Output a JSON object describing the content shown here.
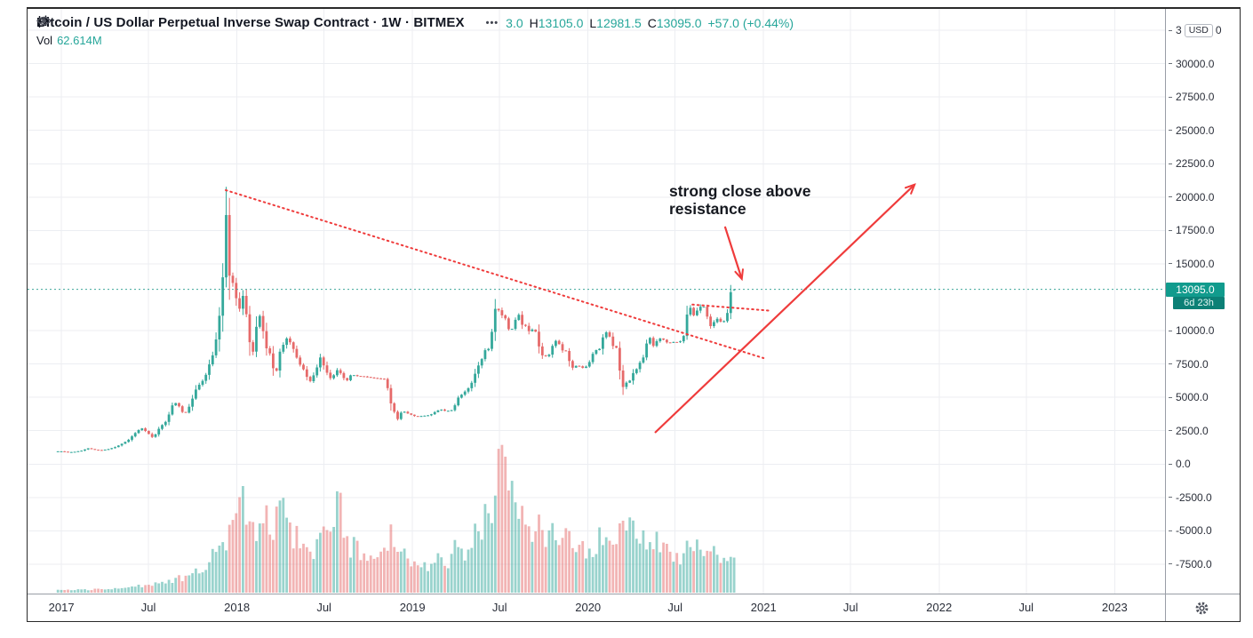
{
  "header": {
    "title": "Bitcoin / US Dollar Perpetual Inverse Swap Contract · 1W · BITMEX",
    "more_label": "•••",
    "ohlc": {
      "o_visible": "3.0",
      "h_key": "H",
      "h_val": "13105.0",
      "l_key": "L",
      "l_val": "12981.5",
      "c_key": "C",
      "c_val": "13095.0",
      "change": "+57.0 (+0.44%)"
    },
    "vol_key": "Vol",
    "vol_val": "62.614M"
  },
  "annotation": {
    "line1": "strong close above",
    "line2": "resistance"
  },
  "price_axis": {
    "top_tick": {
      "value": 32500,
      "prefix": "3",
      "badge": "USD",
      "suffix": "0"
    },
    "ticks": [
      "30000.0",
      "27500.0",
      "25000.0",
      "22500.0",
      "20000.0",
      "17500.0",
      "15000.0",
      "10000.0",
      "7500.0",
      "5000.0",
      "2500.0",
      "0.0",
      "-2500.0",
      "-5000.0",
      "-7500.0"
    ],
    "last_price_label": "13095.0",
    "countdown": "6d 23h"
  },
  "time_axis": {
    "ticks": [
      {
        "label": "2017",
        "t": 2017.0
      },
      {
        "label": "Jul",
        "t": 2017.496
      },
      {
        "label": "2018",
        "t": 2018.0
      },
      {
        "label": "Jul",
        "t": 2018.496
      },
      {
        "label": "2019",
        "t": 2019.0
      },
      {
        "label": "Jul",
        "t": 2019.496
      },
      {
        "label": "2020",
        "t": 2020.0
      },
      {
        "label": "Jul",
        "t": 2020.496
      },
      {
        "label": "2021",
        "t": 2021.0
      },
      {
        "label": "Jul",
        "t": 2021.496
      },
      {
        "label": "2022",
        "t": 2022.0
      },
      {
        "label": "Jul",
        "t": 2022.496
      },
      {
        "label": "2023",
        "t": 2023.0
      }
    ]
  },
  "colors": {
    "up": "#34a89b",
    "down": "#e66a6a",
    "grid": "#ecified",
    "gridline": "#eceef2",
    "priceline": "#2a9d90",
    "drawing": "#ef3b3b",
    "axis_text": "#2a2e39",
    "accent_text": "#26a69a"
  },
  "chart_data": {
    "type": "candlestick",
    "title": "Bitcoin / US Dollar Perpetual Inverse Swap Contract",
    "interval": "1W",
    "exchange": "BITMEX",
    "last": {
      "h": 13105.0,
      "l": 12981.5,
      "c": 13095.0,
      "change": 57.0,
      "change_pct": 0.44,
      "volume": "62.614M",
      "bar_time_left": "6d 23h"
    },
    "xlim": [
      2016.807,
      2023.287
    ],
    "ylim": [
      -9700,
      34100
    ],
    "weeks_per_year": 52.18,
    "candle_range": [
      2016.98,
      2020.84
    ],
    "price_line": 13095.0,
    "last_candle": {
      "o": 13038.0,
      "h": 13105.0,
      "l": 12981.5,
      "c": 13095.0
    },
    "close_anchors": [
      [
        2017.0,
        960
      ],
      [
        2017.04,
        890
      ],
      [
        2017.08,
        925
      ],
      [
        2017.12,
        1020
      ],
      [
        2017.15,
        1190
      ],
      [
        2017.19,
        1075
      ],
      [
        2017.23,
        1040
      ],
      [
        2017.27,
        1130
      ],
      [
        2017.31,
        1290
      ],
      [
        2017.35,
        1560
      ],
      [
        2017.38,
        1790
      ],
      [
        2017.42,
        2320
      ],
      [
        2017.44,
        2550
      ],
      [
        2017.46,
        2680
      ],
      [
        2017.48,
        2460
      ],
      [
        2017.52,
        1990
      ],
      [
        2017.54,
        2280
      ],
      [
        2017.56,
        2760
      ],
      [
        2017.6,
        3240
      ],
      [
        2017.63,
        4380
      ],
      [
        2017.65,
        4580
      ],
      [
        2017.67,
        4330
      ],
      [
        2017.7,
        3660
      ],
      [
        2017.73,
        4360
      ],
      [
        2017.75,
        5020
      ],
      [
        2017.77,
        5740
      ],
      [
        2017.8,
        6150
      ],
      [
        2017.82,
        6550
      ],
      [
        2017.84,
        7390
      ],
      [
        2017.86,
        8050
      ],
      [
        2017.88,
        9270
      ],
      [
        2017.9,
        11120
      ],
      [
        2017.92,
        14130
      ],
      [
        2017.94,
        19100
      ],
      [
        2017.955,
        14150
      ],
      [
        2017.97,
        13900
      ],
      [
        2017.99,
        12900
      ],
      [
        2018.01,
        11250
      ],
      [
        2018.03,
        12850
      ],
      [
        2018.05,
        11600
      ],
      [
        2018.07,
        9250
      ],
      [
        2018.09,
        8270
      ],
      [
        2018.11,
        10250
      ],
      [
        2018.13,
        11100
      ],
      [
        2018.15,
        9900
      ],
      [
        2018.17,
        8550
      ],
      [
        2018.19,
        8250
      ],
      [
        2018.21,
        6950
      ],
      [
        2018.23,
        7020
      ],
      [
        2018.25,
        8900
      ],
      [
        2018.27,
        8950
      ],
      [
        2018.29,
        9650
      ],
      [
        2018.31,
        8800
      ],
      [
        2018.33,
        8500
      ],
      [
        2018.35,
        7520
      ],
      [
        2018.37,
        7360
      ],
      [
        2018.4,
        6480
      ],
      [
        2018.42,
        6170
      ],
      [
        2018.44,
        6750
      ],
      [
        2018.46,
        7380
      ],
      [
        2018.48,
        8200
      ],
      [
        2018.5,
        7050
      ],
      [
        2018.52,
        6740
      ],
      [
        2018.54,
        6250
      ],
      [
        2018.56,
        6960
      ],
      [
        2018.58,
        7100
      ],
      [
        2018.6,
        6520
      ],
      [
        2018.63,
        6270
      ],
      [
        2018.65,
        6710
      ],
      [
        2018.69,
        6590
      ],
      [
        2018.73,
        6560
      ],
      [
        2018.77,
        6460
      ],
      [
        2018.81,
        6410
      ],
      [
        2018.84,
        6370
      ],
      [
        2018.86,
        5620
      ],
      [
        2018.88,
        4380
      ],
      [
        2018.9,
        3820
      ],
      [
        2018.92,
        3250
      ],
      [
        2018.94,
        4060
      ],
      [
        2018.96,
        3860
      ],
      [
        2018.98,
        3760
      ],
      [
        2019.02,
        3560
      ],
      [
        2019.06,
        3610
      ],
      [
        2019.1,
        3670
      ],
      [
        2019.13,
        3920
      ],
      [
        2019.16,
        4110
      ],
      [
        2019.19,
        3960
      ],
      [
        2019.23,
        4060
      ],
      [
        2019.26,
        4970
      ],
      [
        2019.29,
        5320
      ],
      [
        2019.33,
        5830
      ],
      [
        2019.37,
        7250
      ],
      [
        2019.4,
        8000
      ],
      [
        2019.42,
        8770
      ],
      [
        2019.44,
        8560
      ],
      [
        2019.46,
        10760
      ],
      [
        2019.48,
        12280
      ],
      [
        2019.5,
        10850
      ],
      [
        2019.52,
        11450
      ],
      [
        2019.54,
        10250
      ],
      [
        2019.56,
        9900
      ],
      [
        2019.58,
        10530
      ],
      [
        2019.6,
        11400
      ],
      [
        2019.63,
        10230
      ],
      [
        2019.65,
        10410
      ],
      [
        2019.67,
        9710
      ],
      [
        2019.69,
        10310
      ],
      [
        2019.71,
        9620
      ],
      [
        2019.73,
        8080
      ],
      [
        2019.75,
        8220
      ],
      [
        2019.77,
        7920
      ],
      [
        2019.79,
        8620
      ],
      [
        2019.81,
        9260
      ],
      [
        2019.83,
        9160
      ],
      [
        2019.85,
        8520
      ],
      [
        2019.88,
        8460
      ],
      [
        2019.9,
        7320
      ],
      [
        2019.92,
        7160
      ],
      [
        2019.94,
        7510
      ],
      [
        2019.96,
        7160
      ],
      [
        2019.98,
        7260
      ],
      [
        2020.0,
        7360
      ],
      [
        2020.02,
        8060
      ],
      [
        2020.04,
        8620
      ],
      [
        2020.06,
        8360
      ],
      [
        2020.08,
        9360
      ],
      [
        2020.1,
        9920
      ],
      [
        2020.12,
        9660
      ],
      [
        2020.15,
        8560
      ],
      [
        2020.17,
        8820
      ],
      [
        2020.19,
        5360
      ],
      [
        2020.21,
        6230
      ],
      [
        2020.23,
        5920
      ],
      [
        2020.25,
        6760
      ],
      [
        2020.27,
        6910
      ],
      [
        2020.29,
        7560
      ],
      [
        2020.31,
        7710
      ],
      [
        2020.33,
        8910
      ],
      [
        2020.35,
        9560
      ],
      [
        2020.37,
        8820
      ],
      [
        2020.4,
        9360
      ],
      [
        2020.42,
        9460
      ],
      [
        2020.44,
        9160
      ],
      [
        2020.46,
        9060
      ],
      [
        2020.48,
        9160
      ],
      [
        2020.5,
        9110
      ],
      [
        2020.52,
        9210
      ],
      [
        2020.54,
        9160
      ],
      [
        2020.56,
        11060
      ],
      [
        2020.58,
        11810
      ],
      [
        2020.6,
        11110
      ],
      [
        2020.63,
        11660
      ],
      [
        2020.65,
        11910
      ],
      [
        2020.67,
        11660
      ],
      [
        2020.69,
        10260
      ],
      [
        2020.71,
        10460
      ],
      [
        2020.73,
        10960
      ],
      [
        2020.75,
        10710
      ],
      [
        2020.77,
        10560
      ],
      [
        2020.795,
        11360
      ],
      [
        2020.815,
        13060
      ],
      [
        2020.84,
        13095
      ]
    ],
    "volume_anchors_M": [
      [
        2017.0,
        4
      ],
      [
        2017.25,
        6
      ],
      [
        2017.5,
        13
      ],
      [
        2017.65,
        22
      ],
      [
        2017.75,
        35
      ],
      [
        2017.85,
        55
      ],
      [
        2017.92,
        85
      ],
      [
        2017.96,
        110
      ],
      [
        2018.0,
        120
      ],
      [
        2018.04,
        150
      ],
      [
        2018.08,
        115
      ],
      [
        2018.13,
        95
      ],
      [
        2018.17,
        130
      ],
      [
        2018.21,
        100
      ],
      [
        2018.25,
        145
      ],
      [
        2018.29,
        110
      ],
      [
        2018.33,
        95
      ],
      [
        2018.38,
        80
      ],
      [
        2018.42,
        70
      ],
      [
        2018.46,
        90
      ],
      [
        2018.5,
        110
      ],
      [
        2018.54,
        85
      ],
      [
        2018.58,
        160
      ],
      [
        2018.62,
        90
      ],
      [
        2018.67,
        75
      ],
      [
        2018.71,
        65
      ],
      [
        2018.75,
        55
      ],
      [
        2018.79,
        50
      ],
      [
        2018.83,
        60
      ],
      [
        2018.88,
        95
      ],
      [
        2018.92,
        85
      ],
      [
        2018.96,
        70
      ],
      [
        2019.0,
        55
      ],
      [
        2019.06,
        45
      ],
      [
        2019.12,
        50
      ],
      [
        2019.17,
        60
      ],
      [
        2019.21,
        55
      ],
      [
        2019.25,
        90
      ],
      [
        2019.29,
        75
      ],
      [
        2019.33,
        85
      ],
      [
        2019.38,
        110
      ],
      [
        2019.42,
        135
      ],
      [
        2019.46,
        150
      ],
      [
        2019.5,
        255
      ],
      [
        2019.53,
        195
      ],
      [
        2019.56,
        170
      ],
      [
        2019.6,
        140
      ],
      [
        2019.65,
        120
      ],
      [
        2019.69,
        100
      ],
      [
        2019.73,
        115
      ],
      [
        2019.77,
        90
      ],
      [
        2019.81,
        120
      ],
      [
        2019.85,
        85
      ],
      [
        2019.9,
        95
      ],
      [
        2019.94,
        70
      ],
      [
        2020.0,
        75
      ],
      [
        2020.04,
        85
      ],
      [
        2020.08,
        95
      ],
      [
        2020.12,
        80
      ],
      [
        2020.16,
        90
      ],
      [
        2020.19,
        160
      ],
      [
        2020.23,
        120
      ],
      [
        2020.27,
        100
      ],
      [
        2020.31,
        90
      ],
      [
        2020.35,
        110
      ],
      [
        2020.4,
        80
      ],
      [
        2020.44,
        70
      ],
      [
        2020.48,
        60
      ],
      [
        2020.52,
        55
      ],
      [
        2020.56,
        90
      ],
      [
        2020.6,
        80
      ],
      [
        2020.65,
        70
      ],
      [
        2020.69,
        75
      ],
      [
        2020.73,
        60
      ],
      [
        2020.77,
        50
      ],
      [
        2020.84,
        63
      ]
    ],
    "annotations": {
      "text": {
        "lines": [
          "strong close above",
          "resistance"
        ],
        "t": 2020.462,
        "price": 21120
      },
      "lines": [
        {
          "name": "descending-resistance-trendline",
          "from": [
            2017.936,
            20520
          ],
          "to": [
            2021.0,
            7940
          ],
          "style": "dotted",
          "arrow": false
        },
        {
          "name": "local-resistance-trendline",
          "from": [
            2020.595,
            11950
          ],
          "to": [
            2021.03,
            11500
          ],
          "style": "dotted",
          "arrow": false
        },
        {
          "name": "bullish-trend-arrow",
          "from": [
            2020.381,
            2349
          ],
          "to": [
            2021.859,
            20921
          ],
          "style": "solid",
          "arrow": true
        },
        {
          "name": "callout-arrow",
          "from": [
            2020.78,
            17800
          ],
          "to": [
            2020.875,
            13900
          ],
          "style": "solid",
          "arrow": true
        }
      ]
    }
  }
}
